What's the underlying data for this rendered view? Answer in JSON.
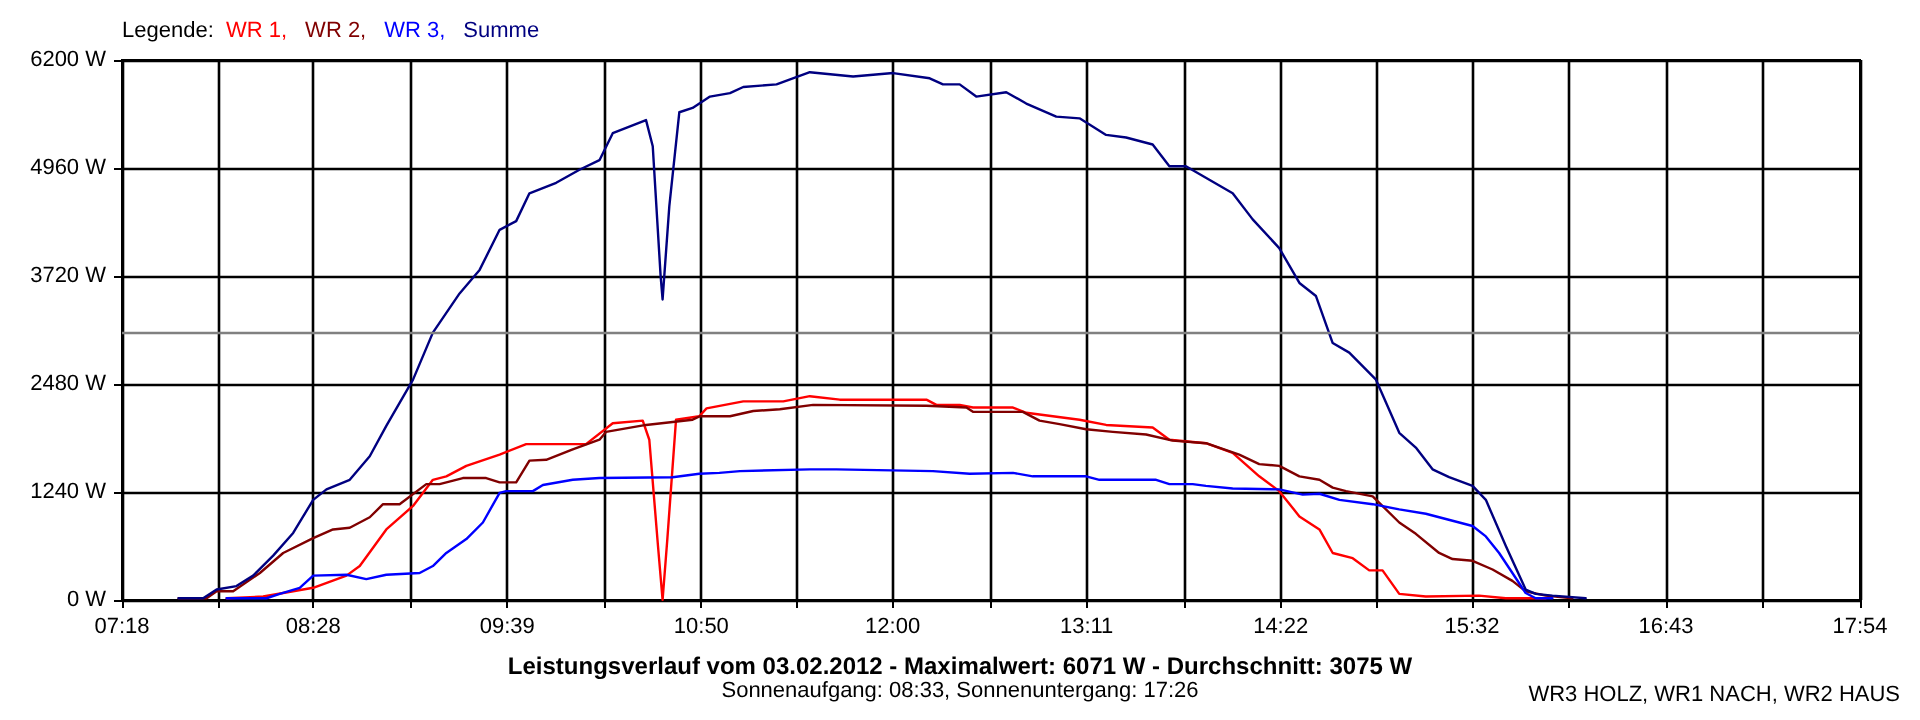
{
  "chart_data": {
    "type": "line",
    "title": "Leistungsverlauf vom 03.02.2012 - Maximalwert: 6071 W - Durchschnitt: 3075 W",
    "subtitle": "Sonnenaufgang: 08:33, Sonnenuntergang: 17:26",
    "legend_title": "Legende:",
    "annotations": [
      "WR3 HOLZ, WR1 NACH, WR2 HAUS"
    ],
    "xlim": [
      7.3,
      17.9
    ],
    "ylim": [
      0,
      6200
    ],
    "xticks": [
      {
        "value": 7.3,
        "label": "07:18"
      },
      {
        "value": 7.883,
        "label": null
      },
      {
        "value": 8.4667,
        "label": "08:28"
      },
      {
        "value": 9.058,
        "label": null
      },
      {
        "value": 9.65,
        "label": "09:39"
      },
      {
        "value": 10.242,
        "label": null
      },
      {
        "value": 10.8333,
        "label": "10:50"
      },
      {
        "value": 11.417,
        "label": null
      },
      {
        "value": 12,
        "label": "12:00"
      },
      {
        "value": 12.592,
        "label": null
      },
      {
        "value": 13.1833,
        "label": "13:11"
      },
      {
        "value": 13.775,
        "label": null
      },
      {
        "value": 14.3667,
        "label": "14:22"
      },
      {
        "value": 14.95,
        "label": null
      },
      {
        "value": 15.5333,
        "label": "15:32"
      },
      {
        "value": 16.125,
        "label": null
      },
      {
        "value": 16.7167,
        "label": "16:43"
      },
      {
        "value": 17.308,
        "label": null
      },
      {
        "value": 17.9,
        "label": "17:54"
      }
    ],
    "yticks": [
      {
        "value": 0,
        "label": "0 W"
      },
      {
        "value": 1240,
        "label": "1240 W"
      },
      {
        "value": 2480,
        "label": "2480 W"
      },
      {
        "value": 3720,
        "label": "3720 W"
      },
      {
        "value": 4960,
        "label": "4960 W"
      },
      {
        "value": 6200,
        "label": "6200 W"
      }
    ],
    "grid": true,
    "legend": "top left",
    "marker": "none",
    "ref_lines": [
      {
        "axis": "y",
        "value": 3075,
        "color": "#808080"
      }
    ],
    "series": [
      {
        "name": "WR 1,",
        "color": "#ff0000",
        "x": [
          7.938,
          8.161,
          8.344,
          8.466,
          8.669,
          8.75,
          8.912,
          9.075,
          9.196,
          9.278,
          9.4,
          9.603,
          9.765,
          10.13,
          10.293,
          10.476,
          10.516,
          10.569,
          10.597,
          10.626,
          10.679,
          10.821,
          10.865,
          11.089,
          11.333,
          11.495,
          11.678,
          11.921,
          12.206,
          12.267,
          12.409,
          12.49,
          12.734,
          12.815,
          12.977,
          13.14,
          13.302,
          13.586,
          13.688,
          13.911,
          14.074,
          14.236,
          14.358,
          14.481,
          14.603,
          14.684,
          14.806,
          14.907,
          14.988,
          15.09,
          15.252,
          15.577,
          15.74,
          15.861,
          15.983
        ],
        "values": [
          20,
          40,
          100,
          140,
          280,
          390,
          810,
          1080,
          1380,
          1420,
          1540,
          1670,
          1790,
          1790,
          2030,
          2060,
          1840,
          620,
          0,
          700,
          2070,
          2110,
          2200,
          2280,
          2280,
          2340,
          2300,
          2300,
          2300,
          2240,
          2240,
          2210,
          2210,
          2150,
          2110,
          2070,
          2010,
          1980,
          1840,
          1800,
          1690,
          1420,
          1250,
          960,
          810,
          540,
          480,
          340,
          340,
          70,
          40,
          50,
          20,
          20,
          20
        ]
      },
      {
        "name": "WR 2,",
        "color": "#800000",
        "x": [
          7.645,
          7.816,
          7.877,
          7.978,
          8.141,
          8.283,
          8.466,
          8.587,
          8.689,
          8.811,
          8.892,
          8.993,
          9.156,
          9.237,
          9.379,
          9.521,
          9.603,
          9.704,
          9.785,
          9.887,
          10.049,
          10.212,
          10.252,
          10.496,
          10.78,
          10.825,
          11.008,
          11.15,
          11.312,
          11.515,
          12.206,
          12.45,
          12.49,
          12.794,
          12.896,
          13.018,
          13.18,
          13.343,
          13.546,
          13.708,
          13.911,
          14.114,
          14.236,
          14.358,
          14.481,
          14.603,
          14.684,
          14.765,
          14.928,
          15.09,
          15.191,
          15.333,
          15.415,
          15.537,
          15.659,
          15.78,
          15.861,
          15.983,
          16.146
        ],
        "values": [
          20,
          20,
          100,
          100,
          310,
          540,
          710,
          810,
          830,
          950,
          1100,
          1100,
          1330,
          1330,
          1400,
          1400,
          1350,
          1350,
          1600,
          1610,
          1730,
          1840,
          1930,
          2010,
          2070,
          2110,
          2110,
          2170,
          2190,
          2240,
          2230,
          2210,
          2160,
          2160,
          2060,
          2020,
          1960,
          1930,
          1900,
          1830,
          1800,
          1670,
          1560,
          1540,
          1420,
          1380,
          1290,
          1250,
          1190,
          890,
          760,
          540,
          470,
          450,
          350,
          220,
          100,
          50,
          20
        ]
      },
      {
        "name": "WR 3,",
        "color": "#0000ff",
        "x": [
          7.938,
          8.181,
          8.262,
          8.384,
          8.466,
          8.669,
          8.79,
          8.912,
          9.115,
          9.196,
          9.278,
          9.4,
          9.501,
          9.603,
          9.643,
          9.806,
          9.867,
          10.049,
          10.212,
          10.658,
          10.821,
          10.943,
          11.069,
          11.495,
          11.657,
          12.246,
          12.47,
          12.734,
          12.855,
          13.18,
          13.261,
          13.607,
          13.688,
          13.83,
          13.911,
          14.074,
          14.358,
          14.501,
          14.603,
          14.725,
          14.928,
          15.09,
          15.252,
          15.415,
          15.537,
          15.618,
          15.699,
          15.78,
          15.861,
          15.922,
          16.024
        ],
        "values": [
          20,
          20,
          70,
          140,
          280,
          290,
          240,
          290,
          310,
          390,
          540,
          700,
          890,
          1230,
          1250,
          1250,
          1320,
          1380,
          1400,
          1410,
          1450,
          1460,
          1480,
          1500,
          1500,
          1480,
          1450,
          1460,
          1420,
          1420,
          1380,
          1380,
          1330,
          1330,
          1310,
          1280,
          1270,
          1210,
          1220,
          1150,
          1100,
          1040,
          990,
          910,
          850,
          730,
          540,
          310,
          80,
          20,
          20
        ]
      },
      {
        "name": "Summe",
        "color": "#000080",
        "x": [
          7.645,
          7.795,
          7.877,
          7.998,
          8.1,
          8.222,
          8.344,
          8.466,
          8.547,
          8.689,
          8.811,
          8.912,
          9.075,
          9.196,
          9.359,
          9.481,
          9.603,
          9.704,
          9.785,
          9.948,
          10.09,
          10.212,
          10.293,
          10.496,
          10.537,
          10.585,
          10.597,
          10.638,
          10.699,
          10.78,
          10.886,
          11.008,
          11.089,
          11.292,
          11.495,
          11.759,
          12.003,
          12.226,
          12.307,
          12.409,
          12.51,
          12.693,
          12.815,
          12.998,
          13.14,
          13.302,
          13.424,
          13.586,
          13.688,
          13.789,
          14.074,
          14.196,
          14.358,
          14.481,
          14.582,
          14.684,
          14.785,
          14.948,
          15.09,
          15.191,
          15.293,
          15.394,
          15.537,
          15.618,
          15.74,
          15.861,
          15.922,
          16.024,
          16.227
        ],
        "values": [
          20,
          20,
          120,
          160,
          280,
          510,
          770,
          1150,
          1270,
          1380,
          1650,
          2000,
          2530,
          3070,
          3520,
          3790,
          4250,
          4350,
          4670,
          4790,
          4940,
          5050,
          5360,
          5510,
          5210,
          3720,
          3450,
          4520,
          5600,
          5650,
          5780,
          5820,
          5890,
          5920,
          6060,
          6010,
          6050,
          5990,
          5920,
          5920,
          5780,
          5830,
          5700,
          5550,
          5530,
          5340,
          5310,
          5230,
          4980,
          4980,
          4670,
          4370,
          4040,
          3640,
          3490,
          2950,
          2840,
          2530,
          1920,
          1750,
          1500,
          1410,
          1310,
          1150,
          620,
          120,
          70,
          50,
          20
        ]
      }
    ]
  }
}
